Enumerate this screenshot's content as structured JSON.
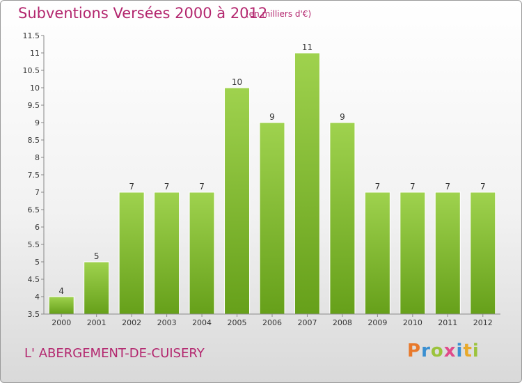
{
  "header": {
    "title": "Subventions Versées 2000 à 2012",
    "unit": "(en milliers d'€)"
  },
  "footer": {
    "commune": "L' ABERGEMENT-DE-CUISERY",
    "logo_letters": [
      "P",
      "r",
      "o",
      "x",
      "i",
      "t",
      "i"
    ],
    "logo_colors": [
      "#e8792b",
      "#3a8fd1",
      "#9bc33c",
      "#e04a8a",
      "#3a8fd1",
      "#e8a92b",
      "#9bc33c"
    ]
  },
  "chart_data": {
    "type": "bar",
    "categories": [
      "2000",
      "2001",
      "2002",
      "2003",
      "2004",
      "2005",
      "2006",
      "2007",
      "2008",
      "2009",
      "2010",
      "2011",
      "2012"
    ],
    "values": [
      4,
      5,
      7,
      7,
      7,
      10,
      9,
      11,
      9,
      7,
      7,
      7,
      7
    ],
    "data_labels": [
      "4",
      "5",
      "7",
      "7",
      "7",
      "10",
      "9",
      "11",
      "9",
      "7",
      "7",
      "7",
      "7"
    ],
    "title": "Subventions Versées 2000 à 2012",
    "xlabel": "",
    "ylabel": "",
    "ylim": [
      3.5,
      11.5
    ],
    "yticks": [
      3.5,
      4,
      4.5,
      5,
      5.5,
      6,
      6.5,
      7,
      7.5,
      8,
      8.5,
      9,
      9.5,
      10,
      10.5,
      11,
      11.5
    ],
    "ytick_labels": [
      "3.5",
      "4",
      "4.5",
      "5",
      "5.5",
      "6",
      "6.5",
      "7",
      "7.5",
      "8",
      "8.5",
      "9",
      "9.5",
      "10",
      "10.5",
      "11",
      "11.5"
    ],
    "grid": false,
    "colors": {
      "bar_top": "#9fd24e",
      "bar_bottom": "#66a01a",
      "bar_edge": "#ffffff",
      "axis": "#888888",
      "text": "#333333"
    }
  }
}
